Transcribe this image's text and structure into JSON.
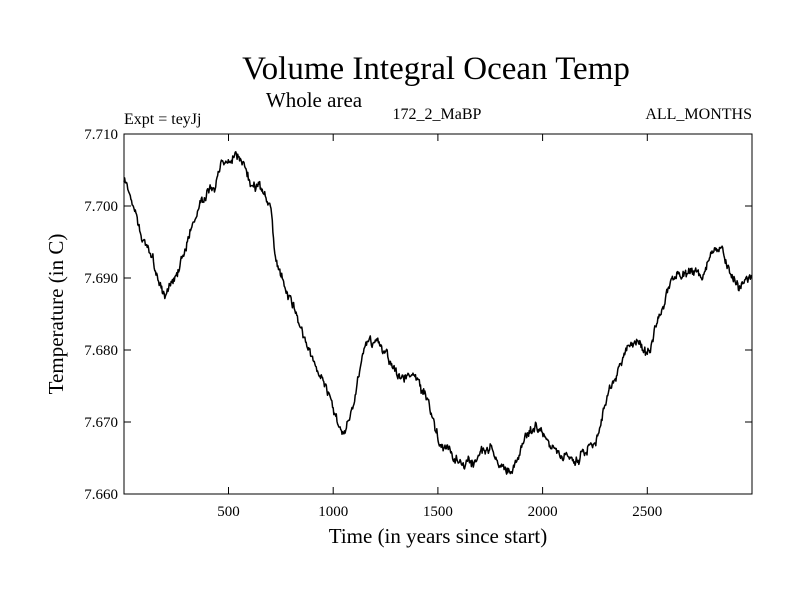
{
  "chart_data": {
    "type": "line",
    "title": "Volume Integral Ocean Temp",
    "subtitle": "Whole area",
    "annotations": {
      "left": "Expt = teyJj",
      "center": "172_2_MaBP",
      "right": "ALL_MONTHS"
    },
    "xlabel": "Time (in years since start)",
    "ylabel": "Temperature (in C)",
    "xlim": [
      1,
      3000
    ],
    "ylim": [
      7.66,
      7.71
    ],
    "x_ticks": [
      500,
      1000,
      1500,
      2000,
      2500
    ],
    "x_tick_labels": [
      "500",
      "1000",
      "1500",
      "2000",
      "2500"
    ],
    "y_ticks": [
      7.66,
      7.67,
      7.68,
      7.69,
      7.7,
      7.71
    ],
    "y_tick_labels": [
      "7.660",
      "7.670",
      "7.680",
      "7.690",
      "7.700",
      "7.710"
    ],
    "grid": false,
    "series": [
      {
        "name": "Volume integral ocean temperature",
        "color": "#000000",
        "x": [
          1,
          40,
          80,
          120,
          160,
          200,
          250,
          300,
          350,
          400,
          450,
          500,
          550,
          600,
          650,
          700,
          720,
          750,
          800,
          850,
          900,
          950,
          1000,
          1050,
          1100,
          1150,
          1200,
          1250,
          1300,
          1350,
          1400,
          1450,
          1500,
          1550,
          1600,
          1650,
          1700,
          1750,
          1800,
          1850,
          1900,
          1950,
          2000,
          2050,
          2100,
          2150,
          2200,
          2250,
          2300,
          2350,
          2400,
          2450,
          2500,
          2550,
          2600,
          2650,
          2700,
          2750,
          2800,
          2850,
          2900,
          2950,
          3000
        ],
        "values": [
          7.704,
          7.701,
          7.697,
          7.694,
          7.69,
          7.688,
          7.691,
          7.695,
          7.699,
          7.702,
          7.704,
          7.706,
          7.707,
          7.703,
          7.702,
          7.7,
          7.694,
          7.69,
          7.687,
          7.683,
          7.679,
          7.675,
          7.671,
          7.668,
          7.673,
          7.681,
          7.681,
          7.679,
          7.677,
          7.676,
          7.676,
          7.673,
          7.668,
          7.666,
          7.665,
          7.664,
          7.665,
          7.666,
          7.664,
          7.663,
          7.666,
          7.669,
          7.668,
          7.666,
          7.665,
          7.664,
          7.666,
          7.667,
          7.672,
          7.676,
          7.68,
          7.681,
          7.679,
          7.684,
          7.688,
          7.69,
          7.691,
          7.691,
          7.693,
          7.694,
          7.69,
          7.689,
          7.69
        ]
      }
    ]
  }
}
